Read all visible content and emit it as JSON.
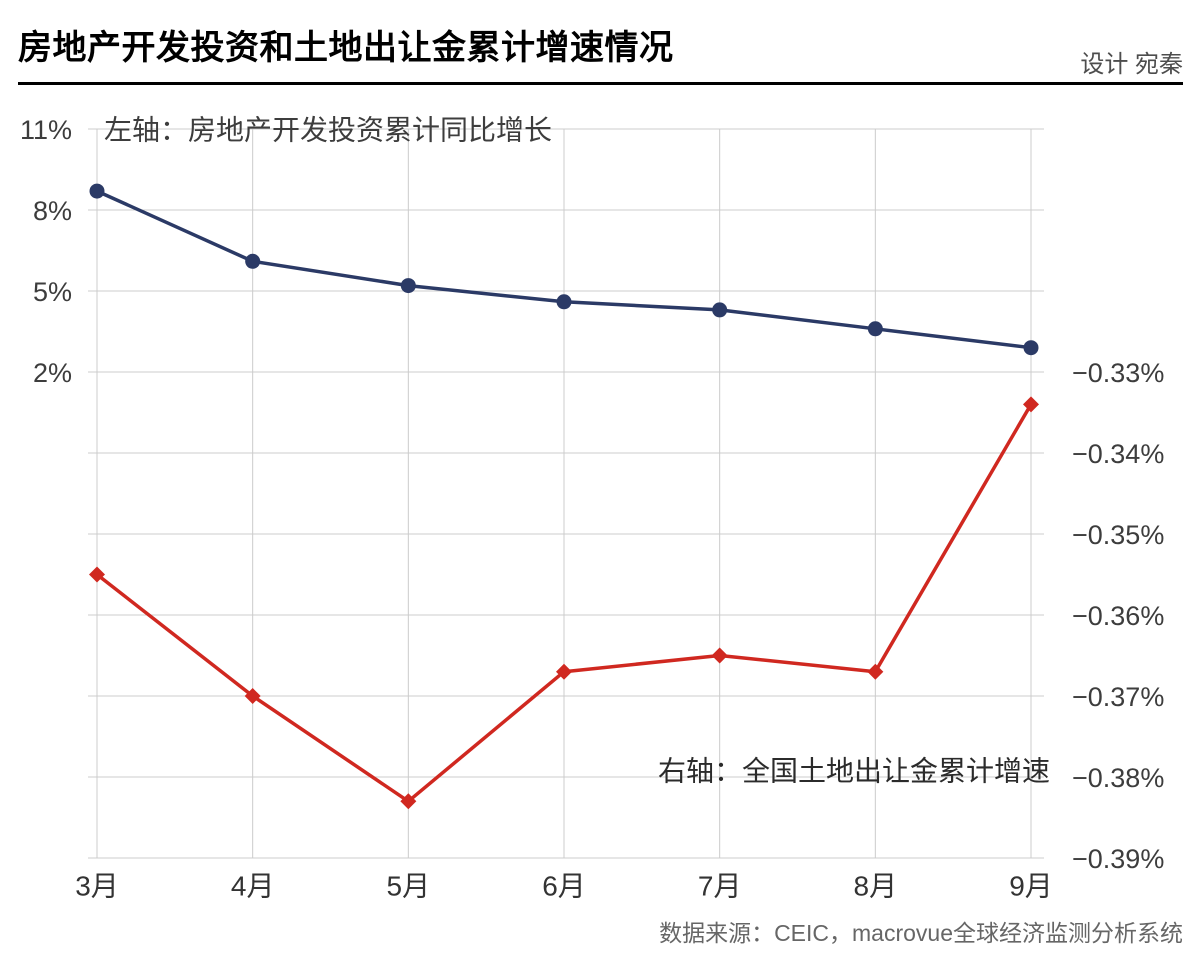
{
  "header": {
    "title": "房地产开发投资和土地出让金累计增速情况",
    "credit": "设计 宛秦"
  },
  "footer": {
    "source": "数据来源：CEIC，macrovue全球经济监测分析系统"
  },
  "chart_data": {
    "type": "line",
    "title": "房地产开发投资和土地出让金累计增速情况",
    "categories": [
      "3月",
      "4月",
      "5月",
      "6月",
      "7月",
      "8月",
      "9月"
    ],
    "series": [
      {
        "id": "investment",
        "name": "左轴：房地产开发投资累计同比增长",
        "axis": "left",
        "color": "#2b3a66",
        "marker": "circle",
        "values": [
          8.7,
          6.1,
          5.2,
          4.6,
          4.3,
          3.6,
          2.9
        ]
      },
      {
        "id": "land-sale",
        "name": "右轴：全国土地出让金累计增速",
        "axis": "right",
        "color": "#d02820",
        "marker": "diamond",
        "values": [
          -0.355,
          -0.37,
          -0.383,
          -0.367,
          -0.365,
          -0.367,
          -0.334
        ]
      }
    ],
    "left_axis": {
      "label": "左轴：房地产开发投资累计同比增长",
      "ticks": [
        "11%",
        "8%",
        "5%",
        "2%"
      ],
      "values": [
        11,
        8,
        5,
        2
      ]
    },
    "right_axis": {
      "label": "右轴：全国土地出让金累计增速",
      "ticks": [
        "−0.33%",
        "−0.34%",
        "−0.35%",
        "−0.36%",
        "−0.37%",
        "−0.38%",
        "−0.39%"
      ],
      "values": [
        -0.33,
        -0.34,
        -0.35,
        -0.36,
        -0.37,
        -0.38,
        -0.39
      ]
    },
    "grid": true,
    "grid_color": "#cccccc",
    "legend_position": "inline-labels"
  }
}
